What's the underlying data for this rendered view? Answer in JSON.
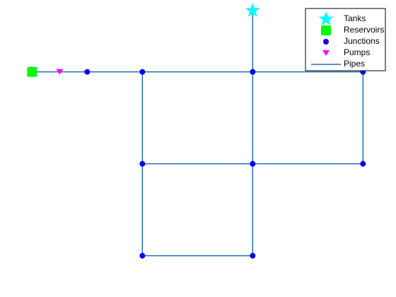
{
  "colors": {
    "pipe": "#1f6fb5",
    "junction": "#0000ee",
    "tank": "#00ffff",
    "reservoir": "#00ff00",
    "pump": "#ff00ff",
    "legend_border": "#000000"
  },
  "legend": {
    "placement": "top-right",
    "items": [
      {
        "key": "tank",
        "label": "Tanks",
        "icon": "star-icon"
      },
      {
        "key": "reservoir",
        "label": "Reservoirs",
        "icon": "square-icon"
      },
      {
        "key": "junction",
        "label": "Junctions",
        "icon": "dot-icon"
      },
      {
        "key": "pump",
        "label": "Pumps",
        "icon": "triangle-down-icon"
      },
      {
        "key": "pipe",
        "label": "Pipes",
        "icon": "line-icon"
      }
    ]
  },
  "network": {
    "nodes": [
      {
        "id": "R1",
        "type": "reservoir",
        "x": 1,
        "y": 5
      },
      {
        "id": "P1",
        "type": "pump",
        "x": 2,
        "y": 5
      },
      {
        "id": "J1",
        "type": "junction",
        "x": 3,
        "y": 5
      },
      {
        "id": "J2",
        "type": "junction",
        "x": 5,
        "y": 5
      },
      {
        "id": "J3",
        "type": "junction",
        "x": 9,
        "y": 5
      },
      {
        "id": "J4",
        "type": "junction",
        "x": 13,
        "y": 5
      },
      {
        "id": "J5",
        "type": "junction",
        "x": 5,
        "y": 2
      },
      {
        "id": "J6",
        "type": "junction",
        "x": 9,
        "y": 2
      },
      {
        "id": "J7",
        "type": "junction",
        "x": 13,
        "y": 2
      },
      {
        "id": "J8",
        "type": "junction",
        "x": 5,
        "y": -1
      },
      {
        "id": "J9",
        "type": "junction",
        "x": 9,
        "y": -1
      },
      {
        "id": "T1",
        "type": "tank",
        "x": 9,
        "y": 7
      }
    ],
    "pipes": [
      [
        "R1",
        "J1"
      ],
      [
        "J1",
        "J2"
      ],
      [
        "J2",
        "J3"
      ],
      [
        "J3",
        "J4"
      ],
      [
        "J3",
        "T1"
      ],
      [
        "J2",
        "J5"
      ],
      [
        "J3",
        "J6"
      ],
      [
        "J4",
        "J7"
      ],
      [
        "J5",
        "J6"
      ],
      [
        "J6",
        "J7"
      ],
      [
        "J5",
        "J8"
      ],
      [
        "J6",
        "J9"
      ],
      [
        "J8",
        "J9"
      ]
    ]
  }
}
